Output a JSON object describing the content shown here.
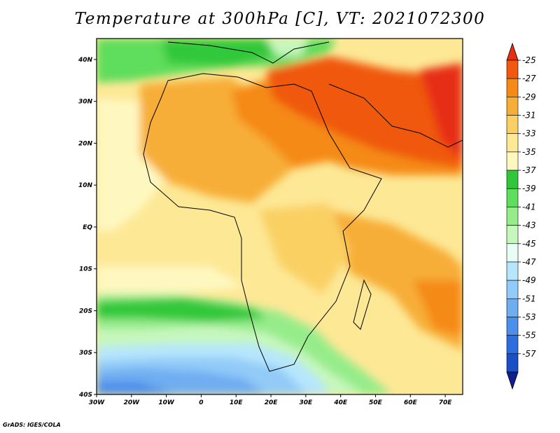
{
  "title": "Temperature at 300hPa [C], VT: 2021072300",
  "credit": "GrADS: IGES/COLA",
  "map": {
    "lon_range": [
      -30,
      75
    ],
    "lat_range": [
      -40,
      45
    ],
    "lat_ticks": [
      {
        "value": 40,
        "label": "40N"
      },
      {
        "value": 30,
        "label": "30N"
      },
      {
        "value": 20,
        "label": "20N"
      },
      {
        "value": 10,
        "label": "10N"
      },
      {
        "value": 0,
        "label": "EQ"
      },
      {
        "value": -10,
        "label": "10S"
      },
      {
        "value": -20,
        "label": "20S"
      },
      {
        "value": -30,
        "label": "30S"
      },
      {
        "value": -40,
        "label": "40S"
      }
    ],
    "lon_ticks": [
      {
        "value": -30,
        "label": "30W"
      },
      {
        "value": -20,
        "label": "20W"
      },
      {
        "value": -10,
        "label": "10W"
      },
      {
        "value": 0,
        "label": "0"
      },
      {
        "value": 10,
        "label": "10E"
      },
      {
        "value": 20,
        "label": "20E"
      },
      {
        "value": 30,
        "label": "30E"
      },
      {
        "value": 40,
        "label": "40E"
      },
      {
        "value": 50,
        "label": "50E"
      },
      {
        "value": 60,
        "label": "60E"
      },
      {
        "value": 70,
        "label": "70E"
      }
    ]
  },
  "colorbar": {
    "labels": [
      "-25",
      "-27",
      "-29",
      "-31",
      "-33",
      "-35",
      "-37",
      "-39",
      "-41",
      "-43",
      "-45",
      "-47",
      "-49",
      "-51",
      "-53",
      "-55",
      "-57"
    ],
    "colors": [
      "#e62e12",
      "#f0590f",
      "#f58a17",
      "#f7ae37",
      "#fad064",
      "#fde896",
      "#fef8c0",
      "#30c83a",
      "#5fdd5c",
      "#96ec8a",
      "#c6f7bd",
      "#e9fdf6",
      "#b6e6fc",
      "#92cbf8",
      "#6fadf1",
      "#4c8eeb",
      "#2e6de0",
      "#1a4fc8",
      "#0e1f8f"
    ]
  }
}
